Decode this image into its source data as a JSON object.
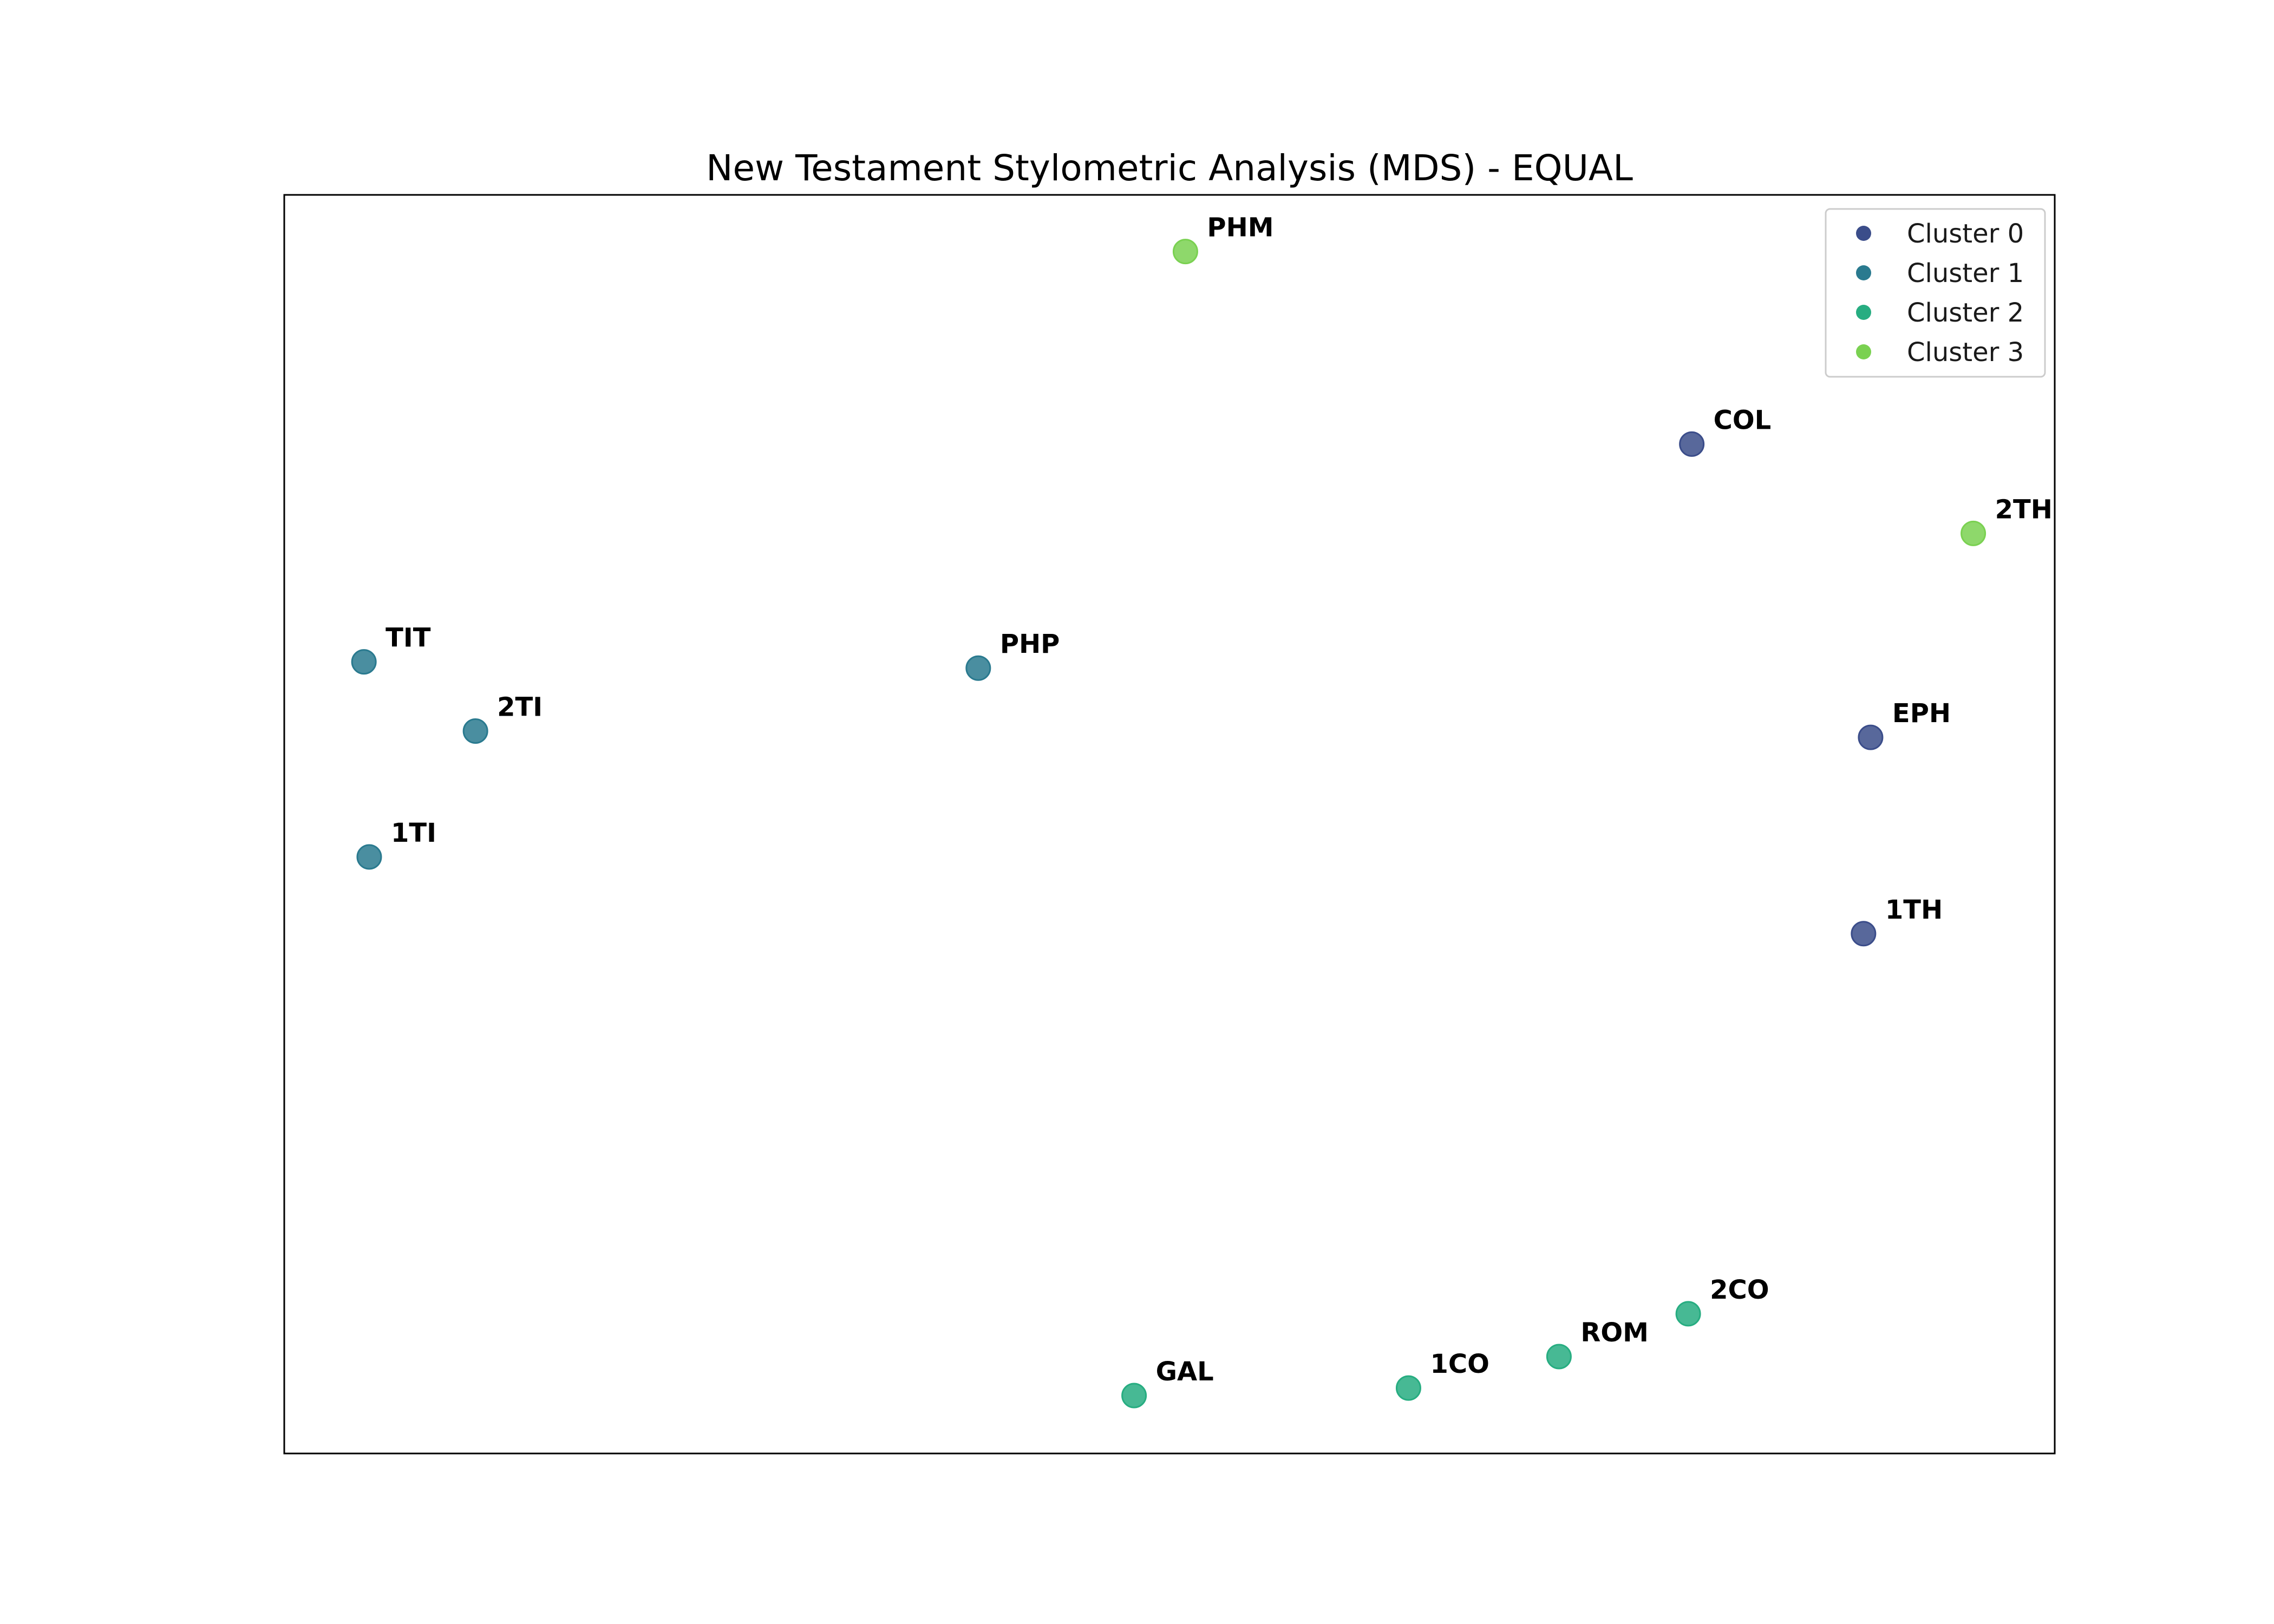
{
  "chart_data": {
    "type": "scatter",
    "title": "New Testament Stylometric Analysis (MDS) - EQUAL",
    "xlabel": "",
    "ylabel": "",
    "axes_ticks": false,
    "grid": false,
    "legend_position": "top-right",
    "xlim": [
      0,
      100
    ],
    "ylim": [
      0,
      100
    ],
    "series": [
      {
        "name": "Cluster 0",
        "color": "#3b4d8a",
        "points": [
          {
            "label": "COL",
            "x": 79.5,
            "y": 80.2
          },
          {
            "label": "EPH",
            "x": 89.6,
            "y": 56.9
          },
          {
            "label": "1TH",
            "x": 89.2,
            "y": 41.3
          }
        ]
      },
      {
        "name": "Cluster 1",
        "color": "#2a7a8f",
        "points": [
          {
            "label": "TIT",
            "x": 4.5,
            "y": 62.9
          },
          {
            "label": "2TI",
            "x": 10.8,
            "y": 57.4
          },
          {
            "label": "1TI",
            "x": 4.8,
            "y": 47.4
          },
          {
            "label": "PHP",
            "x": 39.2,
            "y": 62.4
          }
        ]
      },
      {
        "name": "Cluster 2",
        "color": "#27ad81",
        "points": [
          {
            "label": "GAL",
            "x": 48.0,
            "y": 4.6
          },
          {
            "label": "1CO",
            "x": 63.5,
            "y": 5.2
          },
          {
            "label": "ROM",
            "x": 72.0,
            "y": 7.7
          },
          {
            "label": "2CO",
            "x": 79.3,
            "y": 11.1
          }
        ]
      },
      {
        "name": "Cluster 3",
        "color": "#7ad151",
        "points": [
          {
            "label": "PHM",
            "x": 50.9,
            "y": 95.5
          },
          {
            "label": "2TH",
            "x": 95.4,
            "y": 73.1
          }
        ]
      }
    ]
  }
}
